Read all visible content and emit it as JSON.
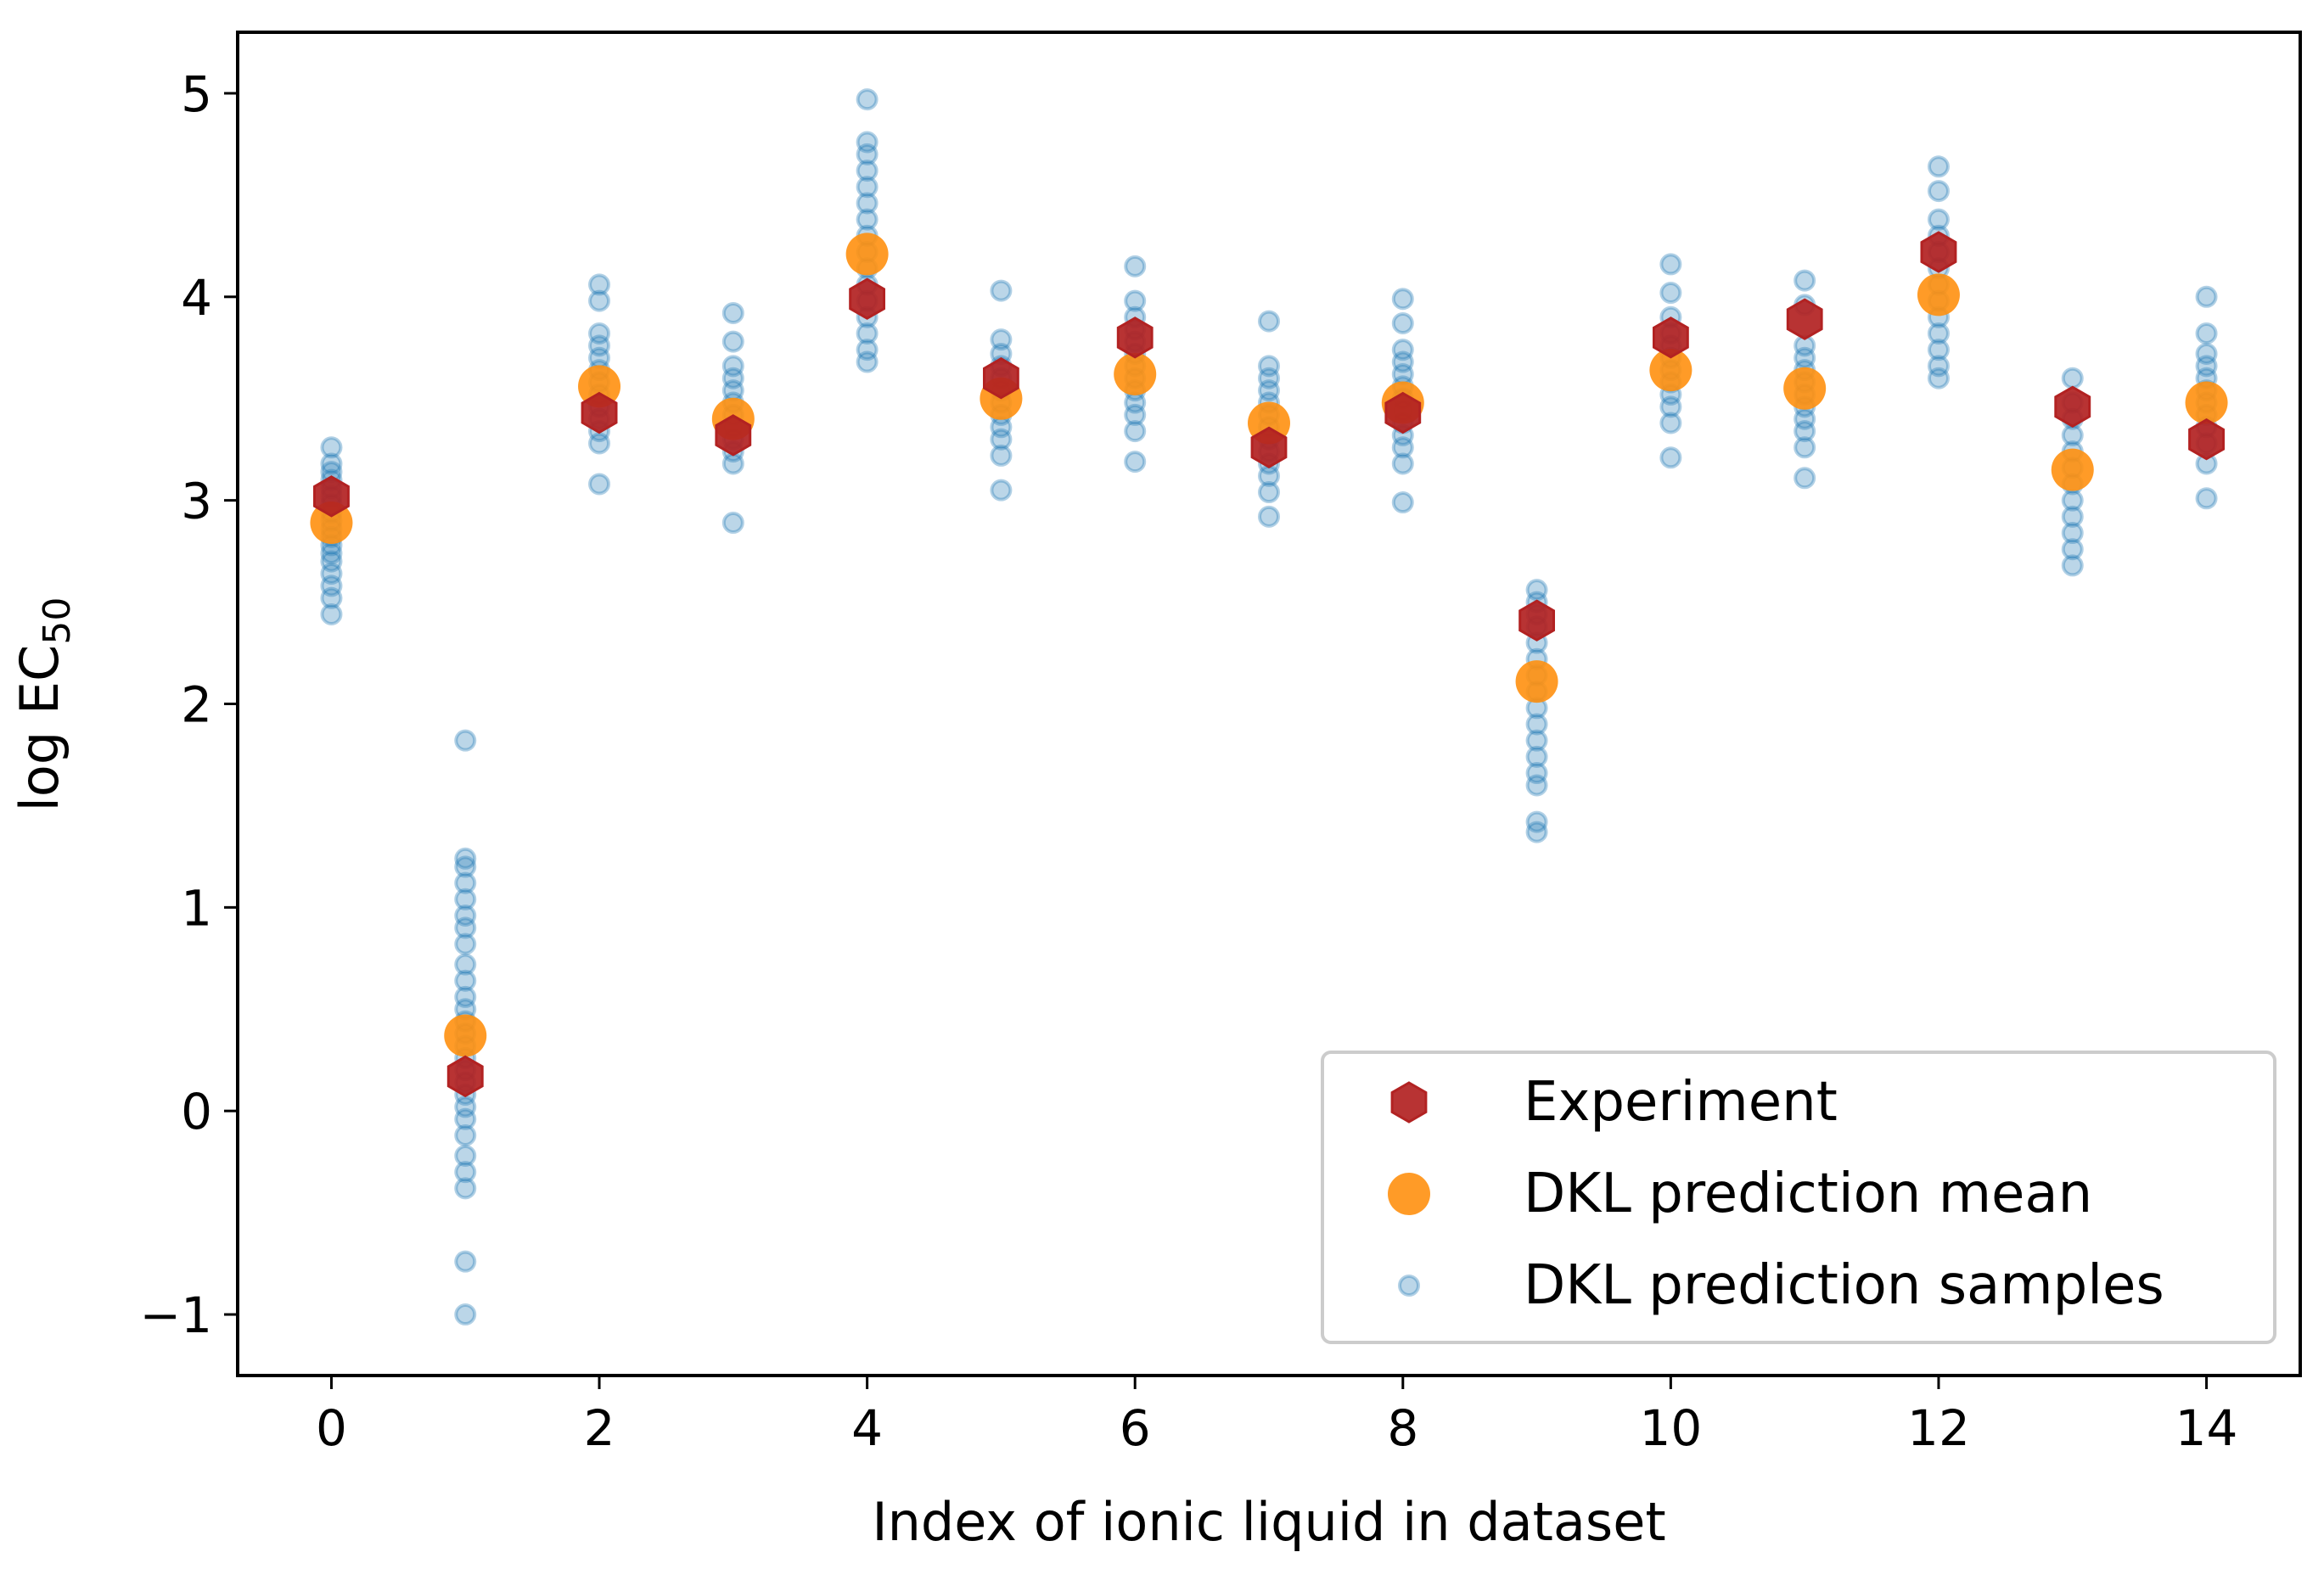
{
  "chart_data": {
    "type": "scatter",
    "title": "",
    "xlabel": "Index of ionic liquid in dataset",
    "ylabel": {
      "main": "log EC",
      "subscript": "50"
    },
    "xlim": [
      -0.7,
      14.7
    ],
    "ylim": [
      -1.3,
      5.3
    ],
    "xticks": [
      0,
      2,
      4,
      6,
      8,
      10,
      12,
      14
    ],
    "xtick_labels": [
      "0",
      "2",
      "4",
      "6",
      "8",
      "10",
      "12",
      "14"
    ],
    "yticks": [
      -1,
      0,
      1,
      2,
      3,
      4,
      5
    ],
    "ytick_labels": [
      "−1",
      "0",
      "1",
      "2",
      "3",
      "4",
      "5"
    ],
    "grid": false,
    "legend_position": "lower-right",
    "colors": {
      "experiment": "#b22222",
      "mean": "#ff9010",
      "samples": "#1f77b4"
    },
    "series": [
      {
        "name": "Experiment",
        "marker": "hexagon",
        "x": [
          0,
          1,
          2,
          3,
          4,
          5,
          6,
          7,
          8,
          9,
          10,
          11,
          12,
          13,
          14
        ],
        "y": [
          3.02,
          0.17,
          3.43,
          3.32,
          3.99,
          3.6,
          3.8,
          3.26,
          3.43,
          2.41,
          3.8,
          3.89,
          4.22,
          3.46,
          3.3
        ]
      },
      {
        "name": "DKL prediction mean",
        "marker": "circle",
        "x": [
          0,
          1,
          2,
          3,
          4,
          5,
          6,
          7,
          8,
          9,
          10,
          11,
          12,
          13,
          14
        ],
        "y": [
          2.89,
          0.37,
          3.56,
          3.4,
          4.21,
          3.5,
          3.62,
          3.38,
          3.48,
          2.11,
          3.64,
          3.55,
          4.01,
          3.15,
          3.48
        ]
      },
      {
        "name": "DKL prediction samples",
        "marker": "small-circle",
        "columns": [
          {
            "x": 0,
            "y": [
              2.44,
              2.52,
              2.58,
              2.64,
              2.7,
              2.74,
              2.78,
              2.82,
              2.86,
              2.9,
              2.94,
              2.98,
              3.02,
              3.06,
              3.1,
              3.14,
              3.18,
              3.26
            ]
          },
          {
            "x": 1,
            "y": [
              -1.0,
              -0.74,
              -0.38,
              -0.3,
              -0.22,
              -0.12,
              -0.04,
              0.02,
              0.08,
              0.14,
              0.2,
              0.26,
              0.32,
              0.38,
              0.44,
              0.5,
              0.56,
              0.64,
              0.72,
              0.82,
              0.9,
              0.96,
              1.04,
              1.12,
              1.2,
              1.24,
              1.82
            ]
          },
          {
            "x": 2,
            "y": [
              3.08,
              3.28,
              3.34,
              3.4,
              3.46,
              3.52,
              3.58,
              3.64,
              3.7,
              3.76,
              3.82,
              3.98,
              4.06
            ]
          },
          {
            "x": 3,
            "y": [
              2.89,
              3.18,
              3.24,
              3.3,
              3.36,
              3.42,
              3.48,
              3.54,
              3.6,
              3.66,
              3.78,
              3.92
            ]
          },
          {
            "x": 4,
            "y": [
              3.68,
              3.74,
              3.82,
              3.9,
              3.98,
              4.06,
              4.14,
              4.22,
              4.3,
              4.38,
              4.46,
              4.54,
              4.62,
              4.7,
              4.76,
              4.97
            ]
          },
          {
            "x": 5,
            "y": [
              3.05,
              3.22,
              3.3,
              3.36,
              3.42,
              3.48,
              3.54,
              3.6,
              3.66,
              3.72,
              3.79,
              4.03
            ]
          },
          {
            "x": 6,
            "y": [
              3.19,
              3.34,
              3.42,
              3.48,
              3.54,
              3.6,
              3.66,
              3.72,
              3.78,
              3.84,
              3.9,
              3.98,
              4.15
            ]
          },
          {
            "x": 7,
            "y": [
              2.92,
              3.04,
              3.12,
              3.18,
              3.24,
              3.3,
              3.36,
              3.42,
              3.48,
              3.54,
              3.6,
              3.66,
              3.88
            ]
          },
          {
            "x": 8,
            "y": [
              2.99,
              3.18,
              3.26,
              3.32,
              3.38,
              3.44,
              3.5,
              3.56,
              3.62,
              3.68,
              3.74,
              3.87,
              3.99
            ]
          },
          {
            "x": 9,
            "y": [
              1.37,
              1.42,
              1.6,
              1.66,
              1.74,
              1.82,
              1.9,
              1.98,
              2.06,
              2.14,
              2.22,
              2.3,
              2.38,
              2.44,
              2.5,
              2.56
            ]
          },
          {
            "x": 10,
            "y": [
              3.21,
              3.38,
              3.46,
              3.52,
              3.58,
              3.64,
              3.7,
              3.76,
              3.82,
              3.9,
              4.02,
              4.16
            ]
          },
          {
            "x": 11,
            "y": [
              3.11,
              3.26,
              3.34,
              3.4,
              3.46,
              3.52,
              3.58,
              3.64,
              3.7,
              3.76,
              3.96,
              4.08
            ]
          },
          {
            "x": 12,
            "y": [
              3.6,
              3.66,
              3.74,
              3.82,
              3.9,
              3.98,
              4.06,
              4.14,
              4.22,
              4.3,
              4.38,
              4.52,
              4.64
            ]
          },
          {
            "x": 13,
            "y": [
              2.68,
              2.76,
              2.84,
              2.92,
              3.0,
              3.08,
              3.16,
              3.24,
              3.32,
              3.4,
              3.48,
              3.6
            ]
          },
          {
            "x": 14,
            "y": [
              3.01,
              3.18,
              3.28,
              3.36,
              3.42,
              3.48,
              3.54,
              3.6,
              3.66,
              3.72,
              3.82,
              4.0
            ]
          }
        ]
      }
    ]
  },
  "legend": {
    "items": [
      {
        "label": "Experiment",
        "marker": "hexagon"
      },
      {
        "label": "DKL prediction mean",
        "marker": "circle"
      },
      {
        "label": "DKL prediction samples",
        "marker": "small-circle"
      }
    ]
  }
}
